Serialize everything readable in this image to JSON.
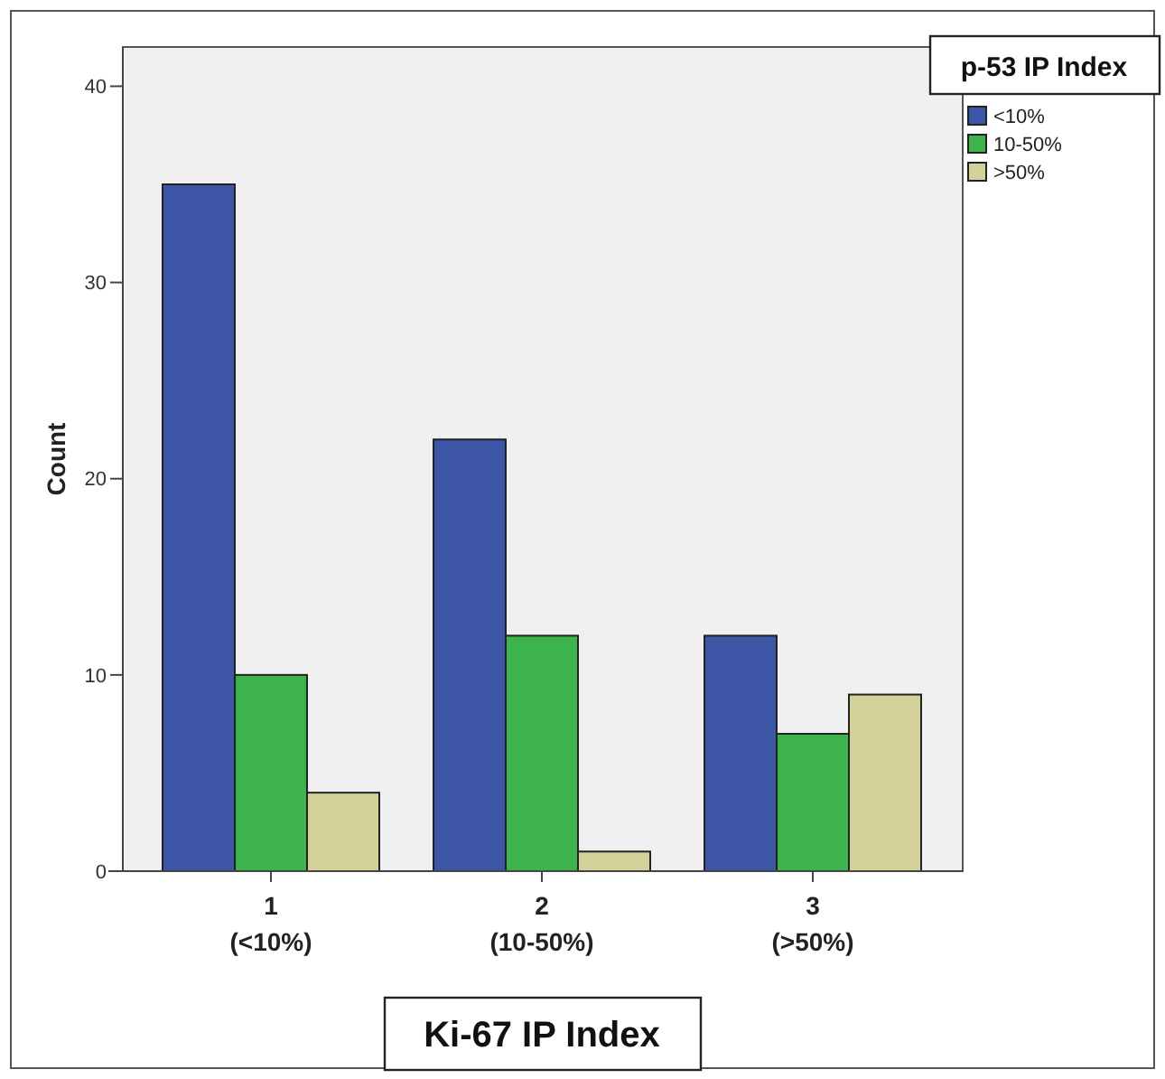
{
  "chart_data": {
    "type": "bar",
    "categories": [
      "1\n(<10%)",
      "2\n(10-50%)",
      "3\n(>50%)"
    ],
    "xlabel": "Ki-67 IP Index",
    "ylabel": "Count",
    "legend_title": "p-53 IP Index",
    "legend": "top right",
    "ylim": [
      0,
      42
    ],
    "yticks": [
      0,
      10,
      20,
      30,
      40
    ],
    "grid": false,
    "series": [
      {
        "name": "<10%",
        "color": "#3d56a6",
        "values": [
          35,
          22,
          12
        ]
      },
      {
        "name": "10-50%",
        "color": "#3cb44b",
        "values": [
          10,
          12,
          7
        ]
      },
      {
        "name": ">50%",
        "color": "#d4d09a",
        "values": [
          4,
          1,
          9
        ]
      }
    ]
  }
}
